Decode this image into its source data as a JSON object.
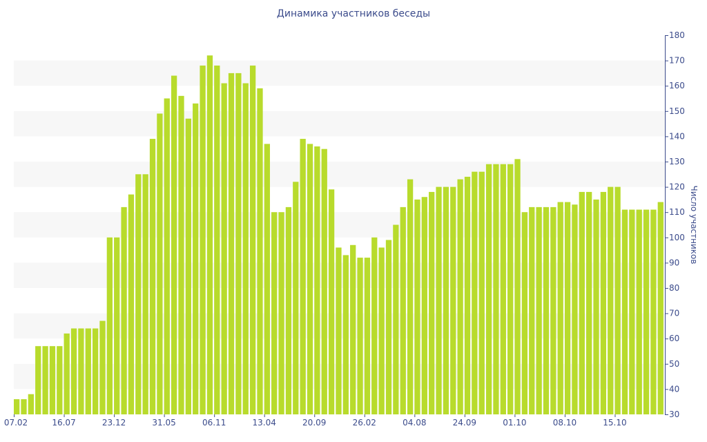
{
  "chart_data": {
    "type": "bar",
    "title": "Динамика участников беседы",
    "xlabel": "",
    "ylabel": "Число участников",
    "ylim": [
      30,
      180
    ],
    "yticks": [
      30,
      40,
      50,
      60,
      70,
      80,
      90,
      100,
      110,
      120,
      130,
      140,
      150,
      160,
      170,
      180
    ],
    "y_axis_side": "right",
    "grid": "alternating horizontal bands",
    "colors": {
      "bar": "#b8db2c",
      "text": "#3b4b8b",
      "band": "#f7f7f7"
    },
    "x_tick_labels": [
      {
        "label": "07.02",
        "index": 0
      },
      {
        "label": "16.07",
        "index": 7
      },
      {
        "label": "23.12",
        "index": 14
      },
      {
        "label": "31.05",
        "index": 21
      },
      {
        "label": "06.11",
        "index": 28
      },
      {
        "label": "13.04",
        "index": 35
      },
      {
        "label": "20.09",
        "index": 42
      },
      {
        "label": "26.02",
        "index": 49
      },
      {
        "label": "04.08",
        "index": 56
      },
      {
        "label": "24.09",
        "index": 63
      },
      {
        "label": "01.10",
        "index": 70
      },
      {
        "label": "08.10",
        "index": 77
      },
      {
        "label": "15.10",
        "index": 84
      }
    ],
    "values": [
      36,
      36,
      38,
      57,
      57,
      57,
      57,
      62,
      64,
      64,
      64,
      64,
      67,
      100,
      100,
      112,
      117,
      125,
      125,
      139,
      149,
      155,
      164,
      156,
      147,
      153,
      168,
      172,
      168,
      161,
      165,
      165,
      161,
      168,
      159,
      137,
      110,
      110,
      112,
      122,
      139,
      137,
      136,
      135,
      119,
      96,
      93,
      97,
      92,
      92,
      100,
      96,
      99,
      105,
      112,
      123,
      115,
      116,
      118,
      120,
      120,
      120,
      123,
      124,
      126,
      126,
      129,
      129,
      129,
      129,
      131,
      110,
      112,
      112,
      112,
      112,
      114,
      114,
      113,
      118,
      118,
      115,
      118,
      120,
      120,
      111,
      111,
      111,
      111,
      111,
      114
    ]
  }
}
